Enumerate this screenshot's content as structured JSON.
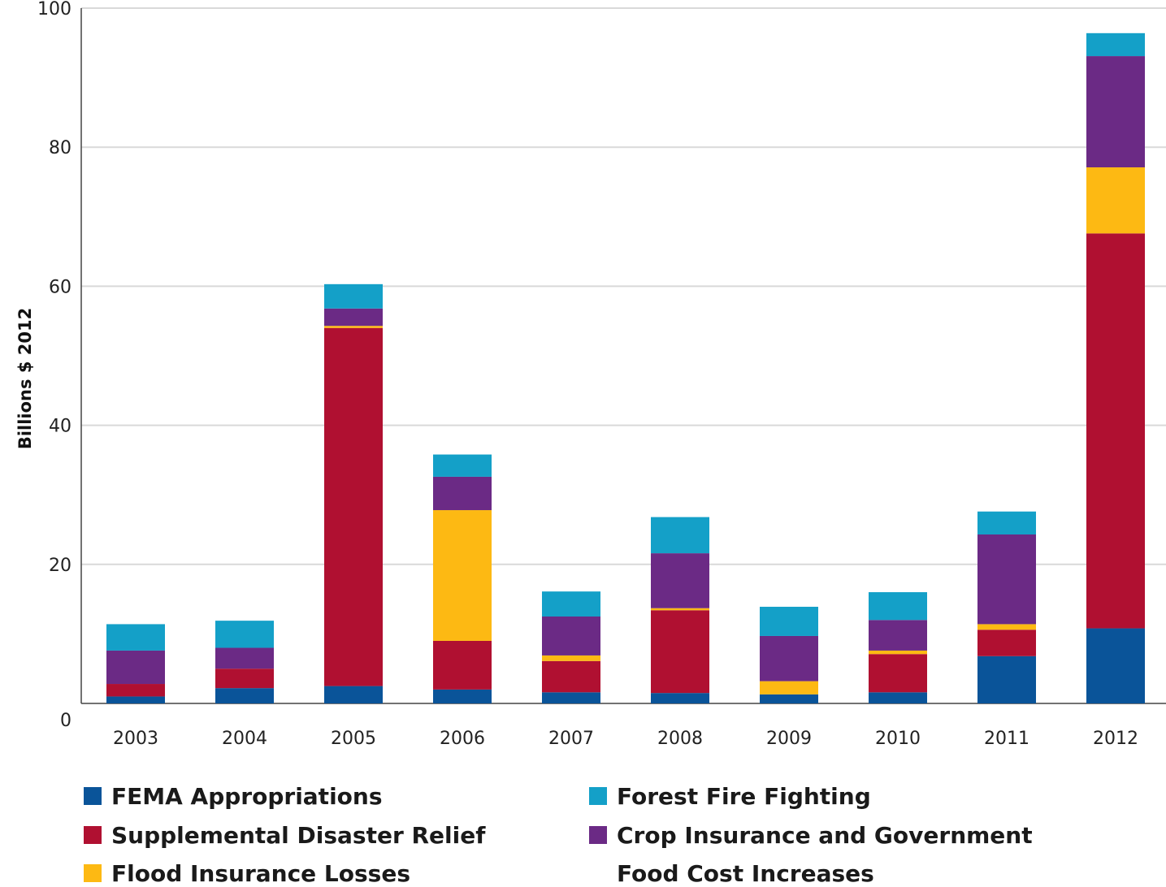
{
  "chart_data": {
    "type": "bar",
    "stacked": true,
    "ylabel": "Billions $ 2012",
    "xlabel": "",
    "ylim": [
      0,
      100
    ],
    "yticks": [
      0,
      20,
      40,
      60,
      80,
      100
    ],
    "grid": true,
    "categories": [
      "2003",
      "2004",
      "2005",
      "2006",
      "2007",
      "2008",
      "2009",
      "2010",
      "2011",
      "2012"
    ],
    "series": [
      {
        "name": "FEMA Appropriations",
        "color": "#0a5499",
        "values": [
          1.0,
          2.2,
          2.5,
          2.0,
          1.6,
          1.5,
          1.3,
          1.6,
          6.8,
          10.8
        ]
      },
      {
        "name": "Supplemental Disaster Relief",
        "color": "#b01031",
        "values": [
          1.8,
          2.8,
          51.5,
          7.0,
          4.5,
          11.9,
          0.0,
          5.5,
          3.8,
          56.8
        ]
      },
      {
        "name": "Flood Insurance Losses",
        "color": "#fdb913",
        "values": [
          0.0,
          0.0,
          0.3,
          18.8,
          0.8,
          0.3,
          1.9,
          0.5,
          0.8,
          9.5
        ]
      },
      {
        "name": "Crop Insurance and Government Food Cost Increases",
        "color": "#6b2a85",
        "values": [
          4.8,
          3.0,
          2.5,
          4.8,
          5.6,
          7.9,
          6.5,
          4.4,
          12.9,
          16.0
        ]
      },
      {
        "name": "Forest Fire Fighting",
        "color": "#14a0c8",
        "values": [
          3.8,
          3.9,
          3.5,
          3.2,
          3.6,
          5.2,
          4.2,
          4.0,
          3.3,
          3.3
        ]
      }
    ]
  },
  "legend": {
    "fema": "FEMA Appropriations",
    "supplemental": "Supplemental Disaster Relief",
    "flood": "Flood Insurance Losses",
    "forest": "Forest Fire Fighting",
    "crop_line1": "Crop Insurance and Government",
    "crop_line2": "Food Cost Increases"
  }
}
